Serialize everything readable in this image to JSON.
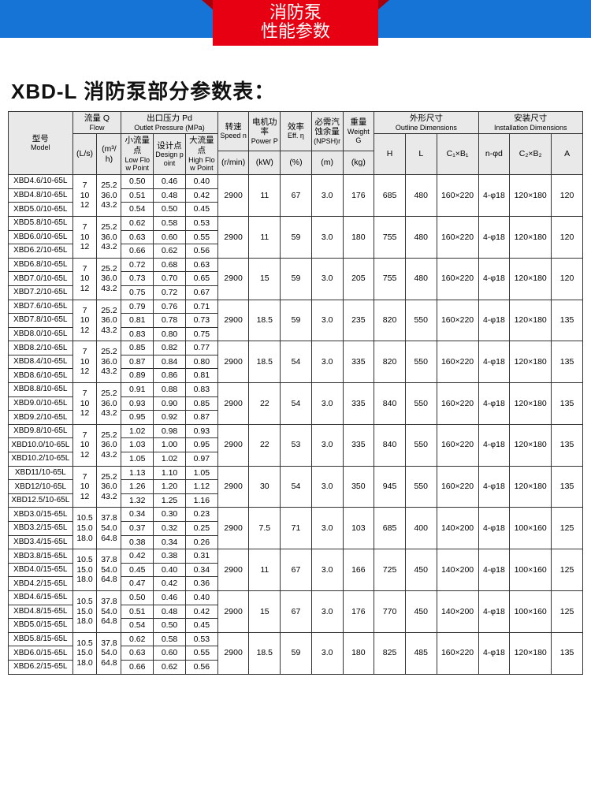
{
  "header": {
    "ribbon_line1": "消防泵",
    "ribbon_line2": "性能参数"
  },
  "title": "XBD-L 消防泵部分参数表：",
  "columns": {
    "model_cn": "型号",
    "model_en": "Model",
    "flow_cn": "流量 Q",
    "flow_en": "Flow",
    "flow_u1": "(L/s)",
    "flow_u2": "(m³/h)",
    "press_cn": "出口压力 Pd",
    "press_en": "Outlet Pressure (MPa)",
    "press_low_cn": "小流量点",
    "press_low_en": "Low Flow Point",
    "press_des_cn": "设计点",
    "press_des_en": "Design point",
    "press_hi_cn": "大流量点",
    "press_hi_en": "High Flow Point",
    "speed_cn": "转速",
    "speed_en": "Speed n",
    "speed_u": "(r/min)",
    "power_cn": "电机功率",
    "power_en": "Power P",
    "power_u": "(kW)",
    "eff_cn": "效率",
    "eff_en": "Eff. η",
    "eff_u": "(%)",
    "npsh_cn": "必需汽蚀余量",
    "npsh_en": "(NPSH)r",
    "npsh_u": "(m)",
    "weight_cn": "重量",
    "weight_en": "Weight G",
    "weight_u": "(kg)",
    "out_cn": "外形尺寸",
    "out_en": "Outline Dimensions",
    "inst_cn": "安装尺寸",
    "inst_en": "Installation Dimensions",
    "H": "H",
    "L": "L",
    "C1B1": "C₁×B₁",
    "nfd": "n-φd",
    "C2B2": "C₂×B₂",
    "A": "A"
  },
  "groups": [
    {
      "models": [
        "XBD4.6/10-65L",
        "XBD4.8/10-65L",
        "XBD5.0/10-65L"
      ],
      "flow_ls": [
        "7",
        "10",
        "12"
      ],
      "flow_m3h": [
        "25.2",
        "36.0",
        "43.2"
      ],
      "p": [
        [
          "0.50",
          "0.46",
          "0.40"
        ],
        [
          "0.51",
          "0.48",
          "0.42"
        ],
        [
          "0.54",
          "0.50",
          "0.45"
        ]
      ],
      "speed": "2900",
      "power": "11",
      "eff": "67",
      "npsh": "3.0",
      "weight": "176",
      "H": "685",
      "L": "480",
      "C1B1": "160×220",
      "nfd": "4-φ18",
      "C2B2": "120×180",
      "A": "120"
    },
    {
      "models": [
        "XBD5.8/10-65L",
        "XBD6.0/10-65L",
        "XBD6.2/10-65L"
      ],
      "flow_ls": [
        "7",
        "10",
        "12"
      ],
      "flow_m3h": [
        "25.2",
        "36.0",
        "43.2"
      ],
      "p": [
        [
          "0.62",
          "0.58",
          "0.53"
        ],
        [
          "0.63",
          "0.60",
          "0.55"
        ],
        [
          "0.66",
          "0.62",
          "0.56"
        ]
      ],
      "speed": "2900",
      "power": "11",
      "eff": "59",
      "npsh": "3.0",
      "weight": "180",
      "H": "755",
      "L": "480",
      "C1B1": "160×220",
      "nfd": "4-φ18",
      "C2B2": "120×180",
      "A": "120"
    },
    {
      "models": [
        "XBD6.8/10-65L",
        "XBD7.0/10-65L",
        "XBD7.2/10-65L"
      ],
      "flow_ls": [
        "7",
        "10",
        "12"
      ],
      "flow_m3h": [
        "25.2",
        "36.0",
        "43.2"
      ],
      "p": [
        [
          "0.72",
          "0.68",
          "0.63"
        ],
        [
          "0.73",
          "0.70",
          "0.65"
        ],
        [
          "0.75",
          "0.72",
          "0.67"
        ]
      ],
      "speed": "2900",
      "power": "15",
      "eff": "59",
      "npsh": "3.0",
      "weight": "205",
      "H": "755",
      "L": "480",
      "C1B1": "160×220",
      "nfd": "4-φ18",
      "C2B2": "120×180",
      "A": "120"
    },
    {
      "models": [
        "XBD7.6/10-65L",
        "XBD7.8/10-65L",
        "XBD8.0/10-65L"
      ],
      "flow_ls": [
        "7",
        "10",
        "12"
      ],
      "flow_m3h": [
        "25.2",
        "36.0",
        "43.2"
      ],
      "p": [
        [
          "0.79",
          "0.76",
          "0.71"
        ],
        [
          "0.81",
          "0.78",
          "0.73"
        ],
        [
          "0.83",
          "0.80",
          "0.75"
        ]
      ],
      "speed": "2900",
      "power": "18.5",
      "eff": "59",
      "npsh": "3.0",
      "weight": "235",
      "H": "820",
      "L": "550",
      "C1B1": "160×220",
      "nfd": "4-φ18",
      "C2B2": "120×180",
      "A": "135"
    },
    {
      "models": [
        "XBD8.2/10-65L",
        "XBD8.4/10-65L",
        "XBD8.6/10-65L"
      ],
      "flow_ls": [
        "7",
        "10",
        "12"
      ],
      "flow_m3h": [
        "25.2",
        "36.0",
        "43.2"
      ],
      "p": [
        [
          "0.85",
          "0.82",
          "0.77"
        ],
        [
          "0.87",
          "0.84",
          "0.80"
        ],
        [
          "0.89",
          "0.86",
          "0.81"
        ]
      ],
      "speed": "2900",
      "power": "18.5",
      "eff": "54",
      "npsh": "3.0",
      "weight": "335",
      "H": "820",
      "L": "550",
      "C1B1": "160×220",
      "nfd": "4-φ18",
      "C2B2": "120×180",
      "A": "135"
    },
    {
      "models": [
        "XBD8.8/10-65L",
        "XBD9.0/10-65L",
        "XBD9.2/10-65L"
      ],
      "flow_ls": [
        "7",
        "10",
        "12"
      ],
      "flow_m3h": [
        "25.2",
        "36.0",
        "43.2"
      ],
      "p": [
        [
          "0.91",
          "0.88",
          "0.83"
        ],
        [
          "0.93",
          "0.90",
          "0.85"
        ],
        [
          "0.95",
          "0.92",
          "0.87"
        ]
      ],
      "speed": "2900",
      "power": "22",
      "eff": "54",
      "npsh": "3.0",
      "weight": "335",
      "H": "840",
      "L": "550",
      "C1B1": "160×220",
      "nfd": "4-φ18",
      "C2B2": "120×180",
      "A": "135"
    },
    {
      "models": [
        "XBD9.8/10-65L",
        "XBD10.0/10-65L",
        "XBD10.2/10-65L"
      ],
      "flow_ls": [
        "7",
        "10",
        "12"
      ],
      "flow_m3h": [
        "25.2",
        "36.0",
        "43.2"
      ],
      "p": [
        [
          "1.02",
          "0.98",
          "0.93"
        ],
        [
          "1.03",
          "1.00",
          "0.95"
        ],
        [
          "1.05",
          "1.02",
          "0.97"
        ]
      ],
      "speed": "2900",
      "power": "22",
      "eff": "53",
      "npsh": "3.0",
      "weight": "335",
      "H": "840",
      "L": "550",
      "C1B1": "160×220",
      "nfd": "4-φ18",
      "C2B2": "120×180",
      "A": "135"
    },
    {
      "models": [
        "XBD11/10-65L",
        "XBD12/10-65L",
        "XBD12.5/10-65L"
      ],
      "flow_ls": [
        "7",
        "10",
        "12"
      ],
      "flow_m3h": [
        "25.2",
        "36.0",
        "43.2"
      ],
      "p": [
        [
          "1.13",
          "1.10",
          "1.05"
        ],
        [
          "1.26",
          "1.20",
          "1.12"
        ],
        [
          "1.32",
          "1.25",
          "1.16"
        ]
      ],
      "speed": "2900",
      "power": "30",
      "eff": "54",
      "npsh": "3.0",
      "weight": "350",
      "H": "945",
      "L": "550",
      "C1B1": "160×220",
      "nfd": "4-φ18",
      "C2B2": "120×180",
      "A": "135"
    },
    {
      "models": [
        "XBD3.0/15-65L",
        "XBD3.2/15-65L",
        "XBD3.4/15-65L"
      ],
      "flow_ls": [
        "10.5",
        "15.0",
        "18.0"
      ],
      "flow_m3h": [
        "37.8",
        "54.0",
        "64.8"
      ],
      "p": [
        [
          "0.34",
          "0.30",
          "0.23"
        ],
        [
          "0.37",
          "0.32",
          "0.25"
        ],
        [
          "0.38",
          "0.34",
          "0.26"
        ]
      ],
      "speed": "2900",
      "power": "7.5",
      "eff": "71",
      "npsh": "3.0",
      "weight": "103",
      "H": "685",
      "L": "400",
      "C1B1": "140×200",
      "nfd": "4-φ18",
      "C2B2": "100×160",
      "A": "125"
    },
    {
      "models": [
        "XBD3.8/15-65L",
        "XBD4.0/15-65L",
        "XBD4.2/15-65L"
      ],
      "flow_ls": [
        "10.5",
        "15.0",
        "18.0"
      ],
      "flow_m3h": [
        "37.8",
        "54.0",
        "64.8"
      ],
      "p": [
        [
          "0.42",
          "0.38",
          "0.31"
        ],
        [
          "0.45",
          "0.40",
          "0.34"
        ],
        [
          "0.47",
          "0.42",
          "0.36"
        ]
      ],
      "speed": "2900",
      "power": "11",
      "eff": "67",
      "npsh": "3.0",
      "weight": "166",
      "H": "725",
      "L": "450",
      "C1B1": "140×200",
      "nfd": "4-φ18",
      "C2B2": "100×160",
      "A": "125"
    },
    {
      "models": [
        "XBD4.6/15-65L",
        "XBD4.8/15-65L",
        "XBD5.0/15-65L"
      ],
      "flow_ls": [
        "10.5",
        "15.0",
        "18.0"
      ],
      "flow_m3h": [
        "37.8",
        "54.0",
        "64.8"
      ],
      "p": [
        [
          "0.50",
          "0.46",
          "0.40"
        ],
        [
          "0.51",
          "0.48",
          "0.42"
        ],
        [
          "0.54",
          "0.50",
          "0.45"
        ]
      ],
      "speed": "2900",
      "power": "15",
      "eff": "67",
      "npsh": "3.0",
      "weight": "176",
      "H": "770",
      "L": "450",
      "C1B1": "140×200",
      "nfd": "4-φ18",
      "C2B2": "100×160",
      "A": "125"
    },
    {
      "models": [
        "XBD5.8/15-65L",
        "XBD6.0/15-65L",
        "XBD6.2/15-65L"
      ],
      "flow_ls": [
        "10.5",
        "15.0",
        "18.0"
      ],
      "flow_m3h": [
        "37.8",
        "54.0",
        "64.8"
      ],
      "p": [
        [
          "0.62",
          "0.58",
          "0.53"
        ],
        [
          "0.63",
          "0.60",
          "0.55"
        ],
        [
          "0.66",
          "0.62",
          "0.56"
        ]
      ],
      "speed": "2900",
      "power": "18.5",
      "eff": "59",
      "npsh": "3.0",
      "weight": "180",
      "H": "825",
      "L": "485",
      "C1B1": "160×220",
      "nfd": "4-φ18",
      "C2B2": "120×180",
      "A": "135"
    }
  ]
}
